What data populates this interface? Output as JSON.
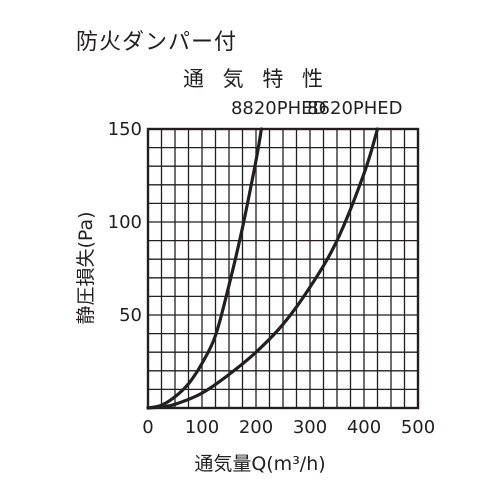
{
  "page": {
    "heading": "防火ダンパー付"
  },
  "chart_data": {
    "type": "line",
    "title": "通 気 特 性",
    "xlabel": "通気量Q(m³/h)",
    "ylabel": "静圧損失(Pa)",
    "xlim": [
      0,
      500
    ],
    "ylim": [
      0,
      150
    ],
    "x_ticks": [
      0,
      100,
      200,
      300,
      400,
      500
    ],
    "y_ticks": [
      50,
      100,
      150
    ],
    "x_tick_labels": [
      "0",
      "100",
      "200",
      "300",
      "400",
      "500"
    ],
    "y_tick_labels": [
      "50",
      "100",
      "150"
    ],
    "grid": true,
    "grid_x_step": 25,
    "grid_y_step": 10,
    "colors": {
      "ink": "#231f20",
      "background": "#ffffff"
    },
    "series": [
      {
        "name": "8820PHED",
        "label_x": 242,
        "points": [
          [
            0,
            0
          ],
          [
            25,
            1.5
          ],
          [
            50,
            6
          ],
          [
            75,
            13
          ],
          [
            100,
            24
          ],
          [
            125,
            39
          ],
          [
            150,
            66
          ],
          [
            175,
            97
          ],
          [
            200,
            133
          ],
          [
            210,
            150
          ]
        ]
      },
      {
        "name": "8620PHED",
        "label_x": 383,
        "points": [
          [
            0,
            0
          ],
          [
            25,
            0.5
          ],
          [
            50,
            2
          ],
          [
            100,
            8
          ],
          [
            150,
            18
          ],
          [
            200,
            30
          ],
          [
            250,
            45
          ],
          [
            300,
            65
          ],
          [
            350,
            90
          ],
          [
            400,
            126
          ],
          [
            425,
            150
          ]
        ]
      }
    ]
  }
}
